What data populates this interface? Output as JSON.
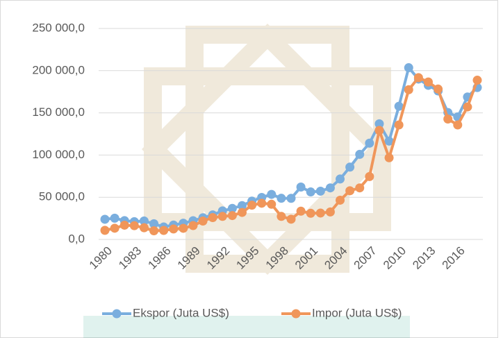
{
  "chart_data": {
    "type": "line",
    "x": [
      1980,
      1981,
      1982,
      1983,
      1984,
      1985,
      1986,
      1987,
      1988,
      1989,
      1990,
      1991,
      1992,
      1993,
      1994,
      1995,
      1996,
      1997,
      1998,
      1999,
      2000,
      2001,
      2002,
      2003,
      2004,
      2005,
      2006,
      2007,
      2008,
      2009,
      2010,
      2011,
      2012,
      2013,
      2014,
      2015,
      2016,
      2017,
      2018
    ],
    "xlim": [
      1980,
      2018
    ],
    "xticks": [
      1980,
      1983,
      1986,
      1989,
      1992,
      1995,
      1998,
      2001,
      2004,
      2007,
      2010,
      2013,
      2016
    ],
    "ylim": [
      0,
      250000
    ],
    "yticks": [
      {
        "value": 0,
        "label": "0,0"
      },
      {
        "value": 50000,
        "label": "50 000,0"
      },
      {
        "value": 100000,
        "label": "100 000,0"
      },
      {
        "value": 150000,
        "label": "150 000,0"
      },
      {
        "value": 200000,
        "label": "200 000,0"
      },
      {
        "value": 250000,
        "label": "250 000,0"
      }
    ],
    "grid": true,
    "legend": "bottom",
    "series": [
      {
        "name": "Ekspor (Juta US$)",
        "color": "#7aaede",
        "values": [
          23900,
          25200,
          22300,
          21100,
          21900,
          18600,
          14800,
          17100,
          19200,
          22200,
          25700,
          29100,
          33800,
          36800,
          40100,
          45400,
          49800,
          53400,
          48800,
          48700,
          62100,
          56300,
          57200,
          61100,
          71600,
          85700,
          100800,
          114100,
          137000,
          116500,
          157800,
          203500,
          190000,
          182600,
          176000,
          150400,
          145200,
          168800,
          180000
        ]
      },
      {
        "name": "Impor (Juta US$)",
        "color": "#f0965a",
        "values": [
          10800,
          13300,
          16900,
          16300,
          13900,
          10300,
          10700,
          12400,
          13200,
          16400,
          21800,
          25900,
          27300,
          28300,
          32000,
          40600,
          42900,
          41700,
          27300,
          24000,
          33500,
          31000,
          31300,
          32600,
          46500,
          57700,
          61100,
          74500,
          129200,
          96800,
          135700,
          177400,
          191700,
          186600,
          178200,
          142700,
          135700,
          157000,
          188700
        ]
      }
    ]
  }
}
